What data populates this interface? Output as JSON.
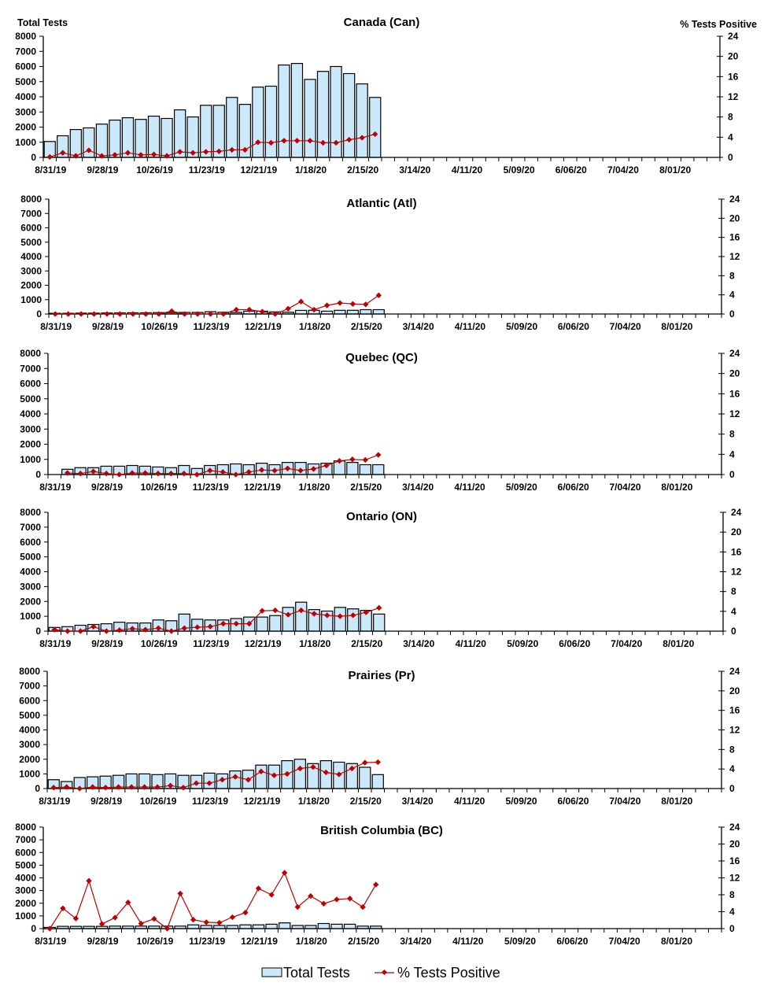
{
  "colors": {
    "bar_fill": "#cce9fb",
    "bar_stroke": "#000000",
    "line": "#c00000"
  },
  "legend": {
    "position": "bottom",
    "bar_label": "Total Tests",
    "line_label": "% Tests Positive"
  },
  "axis_titles": {
    "left": "Total Tests",
    "right": "% Tests Positive"
  },
  "chart_data": [
    {
      "type": "bar+line",
      "title": "Canada (Can)",
      "ylabel": "Total Tests",
      "ylabel_right": "% Tests Positive",
      "ylim": [
        0,
        8000
      ],
      "yticks": [
        0,
        1000,
        2000,
        3000,
        4000,
        5000,
        6000,
        7000,
        8000
      ],
      "ylim_right": [
        0,
        24
      ],
      "yticks_right": [
        0,
        4,
        8,
        12,
        16,
        20,
        24
      ],
      "xlim": [
        "8/31/19",
        "8/22/20"
      ],
      "x_interval": "weekly",
      "x_tick_labels": [
        "8/31/19",
        "9/28/19",
        "10/26/19",
        "11/23/19",
        "12/21/19",
        "1/18/20",
        "2/15/20",
        "3/14/20",
        "4/11/20",
        "5/09/20",
        "6/06/20",
        "7/04/20",
        "8/01/20"
      ],
      "categories": [
        "8/31/19",
        "9/07/19",
        "9/14/19",
        "9/21/19",
        "9/28/19",
        "10/05/19",
        "10/12/19",
        "10/19/19",
        "10/26/19",
        "11/02/19",
        "11/09/19",
        "11/16/19",
        "11/23/19",
        "11/30/19",
        "12/07/19",
        "12/14/19",
        "12/21/19",
        "12/28/19",
        "1/04/20",
        "1/11/20",
        "1/18/20",
        "1/25/20",
        "2/01/20",
        "2/08/20",
        "2/15/20",
        "2/22/20"
      ],
      "series": [
        {
          "name": "Total Tests",
          "type": "bar",
          "axis": "left",
          "values": [
            1050,
            1430,
            1840,
            1950,
            2200,
            2460,
            2620,
            2510,
            2720,
            2570,
            3140,
            2670,
            3440,
            3440,
            3960,
            3500,
            4640,
            4700,
            6100,
            6200,
            5150,
            5680,
            6000,
            5530,
            4850,
            3960
          ]
        },
        {
          "name": "% Tests Positive",
          "type": "line",
          "axis": "right",
          "values": [
            0.1,
            0.9,
            0.3,
            1.4,
            0.3,
            0.5,
            0.9,
            0.5,
            0.6,
            0.3,
            1.1,
            0.9,
            1.1,
            1.2,
            1.5,
            1.5,
            3.0,
            2.9,
            3.3,
            3.3,
            3.3,
            2.9,
            2.9,
            3.5,
            3.9,
            4.6
          ]
        }
      ]
    },
    {
      "type": "bar+line",
      "title": "Atlantic (Atl)",
      "ylim": [
        0,
        8000
      ],
      "yticks": [
        0,
        1000,
        2000,
        3000,
        4000,
        5000,
        6000,
        7000,
        8000
      ],
      "ylim_right": [
        0,
        24
      ],
      "yticks_right": [
        0,
        4,
        8,
        12,
        16,
        20,
        24
      ],
      "xlim": [
        "8/31/19",
        "8/22/20"
      ],
      "x_interval": "weekly",
      "x_tick_labels": [
        "8/31/19",
        "9/28/19",
        "10/26/19",
        "11/23/19",
        "12/21/19",
        "1/18/20",
        "2/15/20",
        "3/14/20",
        "4/11/20",
        "5/09/20",
        "6/06/20",
        "7/04/20",
        "8/01/20"
      ],
      "categories": [
        "8/31/19",
        "9/07/19",
        "9/14/19",
        "9/21/19",
        "9/28/19",
        "10/05/19",
        "10/12/19",
        "10/19/19",
        "10/26/19",
        "11/02/19",
        "11/09/19",
        "11/16/19",
        "11/23/19",
        "11/30/19",
        "12/07/19",
        "12/14/19",
        "12/21/19",
        "12/28/19",
        "1/04/20",
        "1/11/20",
        "1/18/20",
        "1/25/20",
        "2/01/20",
        "2/08/20",
        "2/15/20",
        "2/22/20"
      ],
      "series": [
        {
          "name": "Total Tests",
          "type": "bar",
          "axis": "left",
          "values": [
            50,
            50,
            60,
            60,
            70,
            80,
            90,
            90,
            100,
            100,
            110,
            110,
            160,
            120,
            110,
            200,
            200,
            150,
            120,
            250,
            260,
            200,
            260,
            260,
            300,
            300
          ]
        },
        {
          "name": "% Tests Positive",
          "type": "line",
          "axis": "right",
          "values": [
            0,
            0,
            0,
            0,
            0,
            0,
            0,
            0,
            0,
            0.6,
            0,
            0,
            0,
            0,
            0.9,
            0.9,
            0.5,
            0,
            1.1,
            2.6,
            0.9,
            1.8,
            2.3,
            2.1,
            2.0,
            3.9
          ]
        }
      ]
    },
    {
      "type": "bar+line",
      "title": "Quebec (QC)",
      "ylim": [
        0,
        8000
      ],
      "yticks": [
        0,
        1000,
        2000,
        3000,
        4000,
        5000,
        6000,
        7000,
        8000
      ],
      "ylim_right": [
        0,
        24
      ],
      "yticks_right": [
        0,
        4,
        8,
        12,
        16,
        20,
        24
      ],
      "xlim": [
        "8/31/19",
        "8/22/20"
      ],
      "x_interval": "weekly",
      "x_tick_labels": [
        "8/31/19",
        "9/28/19",
        "10/26/19",
        "11/23/19",
        "12/21/19",
        "1/18/20",
        "2/15/20",
        "3/14/20",
        "4/11/20",
        "5/09/20",
        "6/06/20",
        "7/04/20",
        "8/01/20"
      ],
      "categories": [
        "8/31/19",
        "9/07/19",
        "9/14/19",
        "9/21/19",
        "9/28/19",
        "10/05/19",
        "10/12/19",
        "10/19/19",
        "10/26/19",
        "11/02/19",
        "11/09/19",
        "11/16/19",
        "11/23/19",
        "11/30/19",
        "12/07/19",
        "12/14/19",
        "12/21/19",
        "12/28/19",
        "1/04/20",
        "1/11/20",
        "1/18/20",
        "1/25/20",
        "2/01/20",
        "2/08/20",
        "2/15/20",
        "2/22/20"
      ],
      "series": [
        {
          "name": "Total Tests",
          "type": "bar",
          "axis": "left",
          "values": [
            null,
            350,
            450,
            450,
            550,
            550,
            600,
            550,
            500,
            450,
            600,
            400,
            600,
            650,
            700,
            650,
            750,
            650,
            800,
            800,
            700,
            750,
            900,
            800,
            650,
            650
          ]
        },
        {
          "name": "% Tests Positive",
          "type": "line",
          "axis": "right",
          "values": [
            null,
            0.3,
            0.2,
            0.6,
            0.2,
            0,
            0.3,
            0.3,
            0.2,
            0.2,
            0.2,
            0,
            0.8,
            0.5,
            0,
            0.5,
            0.9,
            0.8,
            1.2,
            0.8,
            1.1,
            1.8,
            2.7,
            3.0,
            2.9,
            3.9
          ]
        }
      ]
    },
    {
      "type": "bar+line",
      "title": "Ontario (ON)",
      "ylim": [
        0,
        8000
      ],
      "yticks": [
        0,
        1000,
        2000,
        3000,
        4000,
        5000,
        6000,
        7000,
        8000
      ],
      "ylim_right": [
        0,
        24
      ],
      "yticks_right": [
        0,
        4,
        8,
        12,
        16,
        20,
        24
      ],
      "xlim": [
        "8/31/19",
        "8/22/20"
      ],
      "x_interval": "weekly",
      "x_tick_labels": [
        "8/31/19",
        "9/28/19",
        "10/26/19",
        "11/23/19",
        "12/21/19",
        "1/18/20",
        "2/15/20",
        "3/14/20",
        "4/11/20",
        "5/09/20",
        "6/06/20",
        "7/04/20",
        "8/01/20"
      ],
      "categories": [
        "8/31/19",
        "9/07/19",
        "9/14/19",
        "9/21/19",
        "9/28/19",
        "10/05/19",
        "10/12/19",
        "10/19/19",
        "10/26/19",
        "11/02/19",
        "11/09/19",
        "11/16/19",
        "11/23/19",
        "11/30/19",
        "12/07/19",
        "12/14/19",
        "12/21/19",
        "12/28/19",
        "1/04/20",
        "1/11/20",
        "1/18/20",
        "1/25/20",
        "2/01/20",
        "2/08/20",
        "2/15/20",
        "2/22/20"
      ],
      "series": [
        {
          "name": "Total Tests",
          "type": "bar",
          "axis": "left",
          "values": [
            250,
            300,
            400,
            450,
            500,
            600,
            550,
            550,
            750,
            700,
            1150,
            800,
            750,
            750,
            850,
            950,
            950,
            1050,
            1600,
            1950,
            1450,
            1350,
            1600,
            1500,
            1400,
            1150
          ]
        },
        {
          "name": "% Tests Positive",
          "type": "line",
          "axis": "right",
          "values": [
            0.3,
            0,
            0,
            0.9,
            0,
            0.2,
            0.5,
            0.3,
            0.6,
            0,
            0.6,
            0.8,
            0.9,
            1.5,
            1.5,
            1.5,
            4.1,
            4.2,
            3.3,
            4.2,
            3.5,
            3.2,
            3.0,
            3.2,
            3.8,
            4.7
          ]
        }
      ]
    },
    {
      "type": "bar+line",
      "title": "Prairies (Pr)",
      "ylim": [
        0,
        8000
      ],
      "yticks": [
        0,
        1000,
        2000,
        3000,
        4000,
        5000,
        6000,
        7000,
        8000
      ],
      "ylim_right": [
        0,
        24
      ],
      "yticks_right": [
        0,
        4,
        8,
        12,
        16,
        20,
        24
      ],
      "xlim": [
        "8/31/19",
        "8/22/20"
      ],
      "x_interval": "weekly",
      "x_tick_labels": [
        "8/31/19",
        "9/28/19",
        "10/26/19",
        "11/23/19",
        "12/21/19",
        "1/18/20",
        "2/15/20",
        "3/14/20",
        "4/11/20",
        "5/09/20",
        "6/06/20",
        "7/04/20",
        "8/01/20"
      ],
      "categories": [
        "8/31/19",
        "9/07/19",
        "9/14/19",
        "9/21/19",
        "9/28/19",
        "10/05/19",
        "10/12/19",
        "10/19/19",
        "10/26/19",
        "11/02/19",
        "11/09/19",
        "11/16/19",
        "11/23/19",
        "11/30/19",
        "12/07/19",
        "12/14/19",
        "12/21/19",
        "12/28/19",
        "1/04/20",
        "1/11/20",
        "1/18/20",
        "1/25/20",
        "2/01/20",
        "2/08/20",
        "2/15/20",
        "2/22/20"
      ],
      "series": [
        {
          "name": "Total Tests",
          "type": "bar",
          "axis": "left",
          "values": [
            600,
            480,
            750,
            800,
            850,
            900,
            1000,
            1000,
            950,
            1000,
            900,
            900,
            1050,
            1000,
            1200,
            1250,
            1600,
            1600,
            1900,
            2000,
            1700,
            1900,
            1800,
            1700,
            1450,
            950
          ]
        },
        {
          "name": "% Tests Positive",
          "type": "line",
          "axis": "right",
          "values": [
            0.2,
            0.3,
            0,
            0.3,
            0.2,
            0.3,
            0.3,
            0.3,
            0.3,
            0.6,
            0.2,
            1.1,
            1.1,
            1.8,
            2.4,
            1.8,
            3.5,
            2.7,
            3.0,
            4.1,
            4.4,
            3.3,
            2.9,
            4.1,
            5.3,
            5.4
          ]
        }
      ]
    },
    {
      "type": "bar+line",
      "title": "British Columbia (BC)",
      "ylim": [
        0,
        8000
      ],
      "yticks": [
        0,
        1000,
        2000,
        3000,
        4000,
        5000,
        6000,
        7000,
        8000
      ],
      "ylim_right": [
        0,
        24
      ],
      "yticks_right": [
        0,
        4,
        8,
        12,
        16,
        20,
        24
      ],
      "xlim": [
        "8/31/19",
        "8/22/20"
      ],
      "x_interval": "weekly",
      "x_tick_labels": [
        "8/31/19",
        "9/28/19",
        "10/26/19",
        "11/23/19",
        "12/21/19",
        "1/18/20",
        "2/15/20",
        "3/14/20",
        "4/11/20",
        "5/09/20",
        "6/06/20",
        "7/04/20",
        "8/01/20"
      ],
      "categories": [
        "8/31/19",
        "9/07/19",
        "9/14/19",
        "9/21/19",
        "9/28/19",
        "10/05/19",
        "10/12/19",
        "10/19/19",
        "10/26/19",
        "11/02/19",
        "11/09/19",
        "11/16/19",
        "11/23/19",
        "11/30/19",
        "12/07/19",
        "12/14/19",
        "12/21/19",
        "12/28/19",
        "1/04/20",
        "1/11/20",
        "1/18/20",
        "1/25/20",
        "2/01/20",
        "2/08/20",
        "2/15/20",
        "2/22/20"
      ],
      "series": [
        {
          "name": "Total Tests",
          "type": "bar",
          "axis": "left",
          "values": [
            100,
            180,
            180,
            180,
            180,
            200,
            200,
            200,
            200,
            200,
            200,
            300,
            250,
            250,
            250,
            300,
            300,
            350,
            450,
            250,
            250,
            400,
            350,
            350,
            200,
            200
          ]
        },
        {
          "name": "% Tests Positive",
          "type": "line",
          "axis": "right",
          "values": [
            0,
            4.8,
            2.4,
            11.3,
            1.1,
            2.6,
            6.2,
            1.2,
            2.3,
            0,
            8.3,
            2.1,
            1.5,
            1.4,
            2.7,
            3.8,
            9.5,
            8.0,
            13.2,
            5.1,
            7.7,
            5.9,
            6.9,
            7.1,
            5.1,
            10.4
          ]
        }
      ]
    }
  ]
}
